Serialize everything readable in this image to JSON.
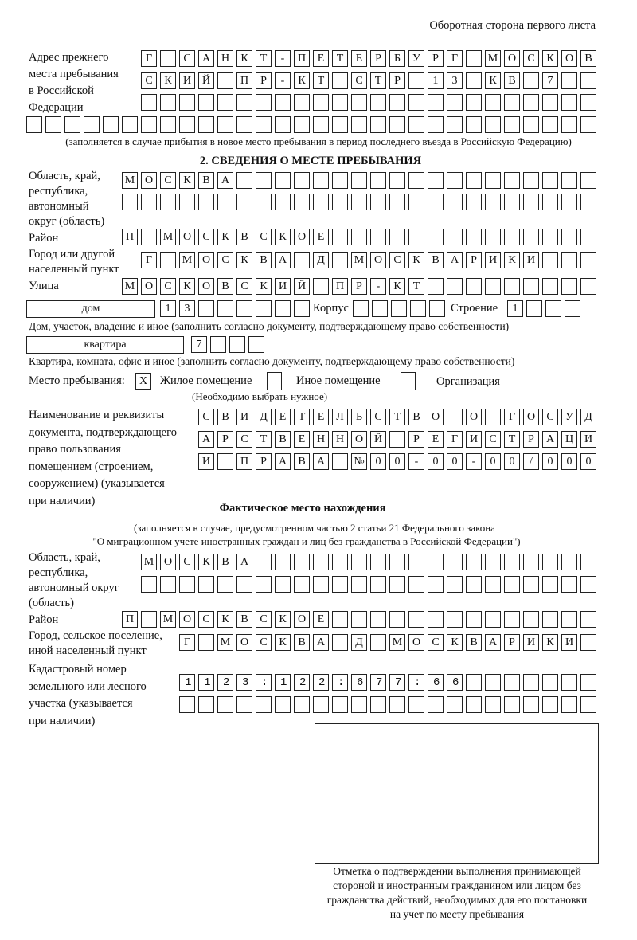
{
  "header": {
    "side_label": "Оборотная сторона первого листа"
  },
  "prev_address": {
    "label": [
      "Адрес прежнего",
      "места пребывания",
      "в Российской",
      "Федерации"
    ],
    "rows": [
      "Г САНКТ-ПЕТЕРБУРГ МОСКОВ",
      "СКИЙ ПР-КТ СТР 13 КВ 7",
      "",
      ""
    ],
    "note": "(заполняется в случае прибытия в новое место пребывания в период последнего въезда в Российскую Федерацию)"
  },
  "section2": {
    "title": "2. СВЕДЕНИЯ О МЕСТЕ ПРЕБЫВАНИЯ",
    "region_label": [
      "Область, край,",
      "республика,",
      "автономный",
      "округ (область)"
    ],
    "region_rows": [
      "МОСКВА",
      ""
    ],
    "district_label": "Район",
    "district": "П МОСКВСКОЕ",
    "city_label": [
      "Город или другой",
      "населенный пункт"
    ],
    "city": "Г МОСКВА Д МОСКВАРИКИ",
    "street_label": "Улица",
    "street": "МОСКОВСКИЙ ПР-КТ",
    "house_type": "дом",
    "house": "13",
    "korpus_label": "Корпус",
    "korpus": "",
    "stroenie_label": "Строение",
    "stroenie": "1",
    "house_note": "Дом, участок, владение и иное (заполнить согласно документу, подтверждающему право собственности)",
    "apt_type": "квартира",
    "apt": "7",
    "apt_note": "Квартира, комната, офис и иное (заполнить согласно документу, подтверждающему право собственности)",
    "stay_label": "Место пребывания:",
    "stay_options": [
      {
        "label": "Жилое помещение",
        "mark": "X"
      },
      {
        "label": "Иное помещение",
        "mark": ""
      },
      {
        "label": "Организация",
        "mark": ""
      }
    ],
    "stay_note": "(Необходимо выбрать нужное)",
    "doc_label": [
      "Наименование и реквизиты",
      "документа, подтверждающего",
      "право пользования",
      "помещением (строением,",
      "сооружением) (указывается",
      "при наличии)"
    ],
    "doc_rows": [
      "СВИДЕТЕЛЬСТВО О ГОСУД",
      "АРСТВЕННОЙ РЕГИСТРАЦИ",
      "И ПРАВА №00-00-00/000"
    ]
  },
  "actual": {
    "title": "Фактическое место нахождения",
    "note": [
      "(заполняется в случае, предусмотренном частью 2 статьи 21 Федерального закона",
      "\"О миграционном учете иностранных граждан и лиц без гражданства в Российской Федерации\")"
    ],
    "region_label": [
      "Область, край,",
      "республика,",
      "автономный округ",
      "(область)"
    ],
    "region_rows": [
      "МОСКВА",
      ""
    ],
    "district_label": "Район",
    "district": "П МОСКВСКОЕ",
    "city_label": [
      "Город, сельское поселение,",
      "иной населенный пункт"
    ],
    "city": "Г МОСКВА Д МОСКВАРИКИ",
    "cadastre_label": [
      "Кадастровый номер",
      "земельного или лесного",
      "участка (указывается",
      "при наличии)"
    ],
    "cadastre_rows": [
      "1123:122:677:66",
      ""
    ]
  },
  "stamp": {
    "caption": [
      "Отметка о подтверждении выполнения принимающей",
      "стороной и иностранным гражданином или лицом без",
      "гражданства действий, необходимых для его постановки",
      "на учет по месту пребывания"
    ]
  }
}
